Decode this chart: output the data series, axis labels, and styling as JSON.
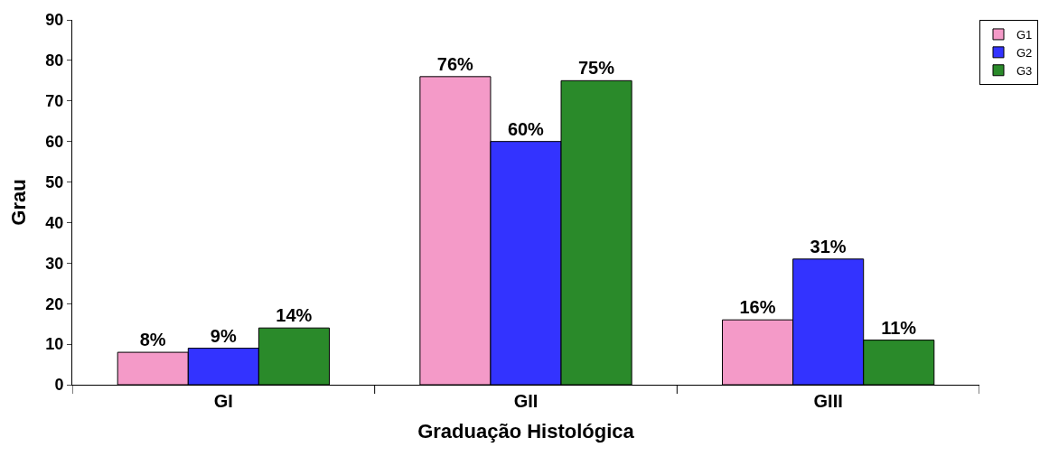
{
  "chart_data": {
    "type": "bar",
    "xlabel": "Graduação Histológica",
    "ylabel": "Grau",
    "categories": [
      "GI",
      "GII",
      "GIII"
    ],
    "series": [
      {
        "name": "G1",
        "color": "#f49ac8",
        "values": [
          8,
          76,
          16
        ],
        "value_labels": [
          "8%",
          "76%",
          "16%"
        ]
      },
      {
        "name": "G2",
        "color": "#3333ff",
        "values": [
          9,
          60,
          31
        ],
        "value_labels": [
          "9%",
          "60%",
          "31%"
        ]
      },
      {
        "name": "G3",
        "color": "#2a8a2a",
        "values": [
          14,
          75,
          11
        ],
        "value_labels": [
          "14%",
          "75%",
          "11%"
        ]
      }
    ],
    "ylim": [
      0,
      90
    ],
    "yticks": [
      0,
      10,
      20,
      30,
      40,
      50,
      60,
      70,
      80,
      90
    ],
    "legend": "top right"
  }
}
